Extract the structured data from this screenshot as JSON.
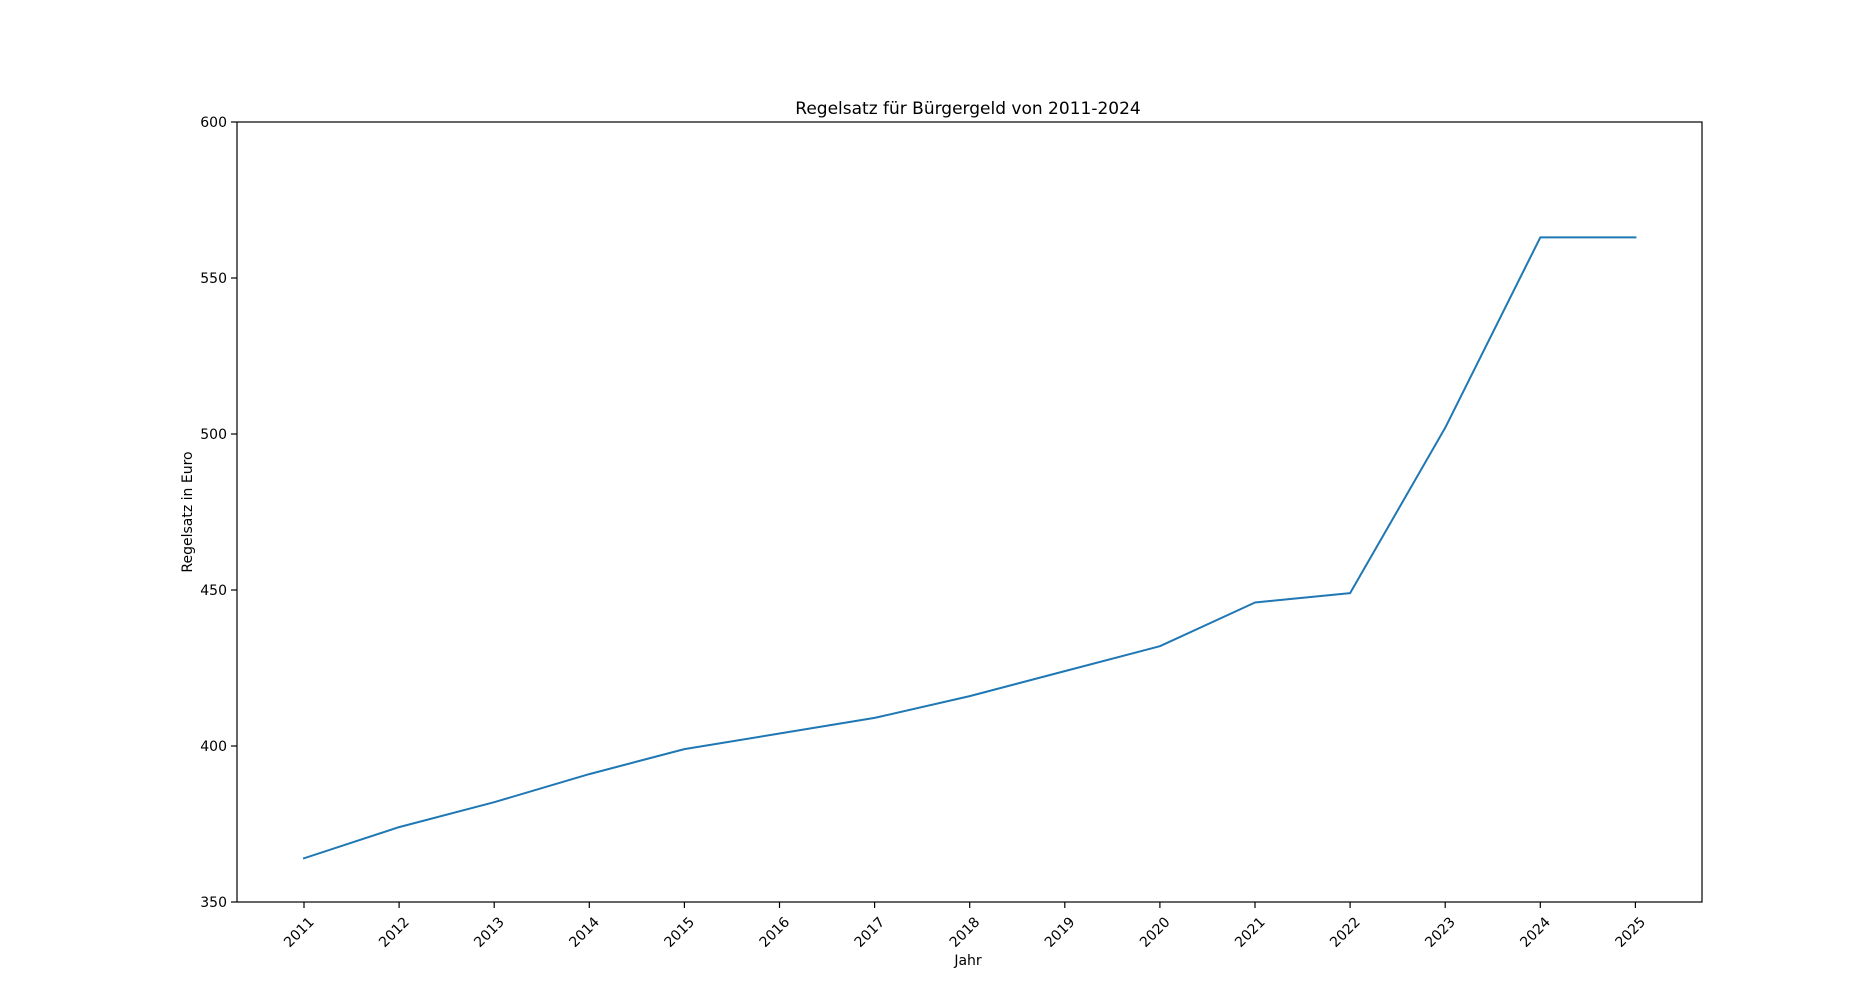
{
  "chart_data": {
    "type": "line",
    "title": "Regelsatz für Bürgergeld von 2011-2024",
    "xlabel": "Jahr",
    "ylabel": "Regelsatz in Euro",
    "categories": [
      "2011",
      "2012",
      "2013",
      "2014",
      "2015",
      "2016",
      "2017",
      "2018",
      "2019",
      "2020",
      "2021",
      "2022",
      "2023",
      "2024",
      "2025"
    ],
    "series": [
      {
        "values": [
          364,
          374,
          382,
          391,
          399,
          404,
          409,
          416,
          424,
          432,
          446,
          449,
          502,
          563,
          563
        ]
      }
    ],
    "ylim": [
      350,
      600
    ],
    "yticks": [
      "350",
      "400",
      "450",
      "500",
      "550",
      "600"
    ],
    "grid": false,
    "line_color": "#1f77b4"
  }
}
